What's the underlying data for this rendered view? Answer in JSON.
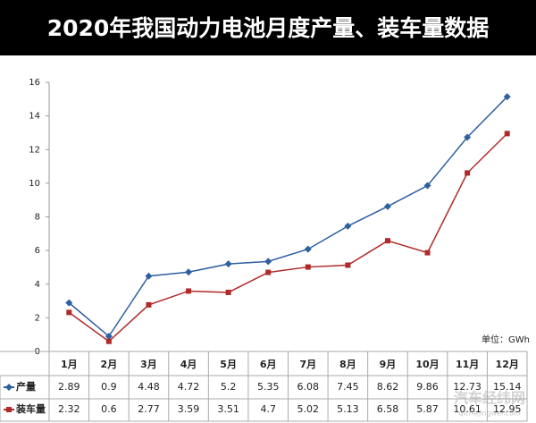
{
  "chart_data": {
    "type": "line",
    "title": "2020年我国动力电池月度产量、装车量数据",
    "categories": [
      "1月",
      "2月",
      "3月",
      "4月",
      "5月",
      "6月",
      "7月",
      "8月",
      "9月",
      "10月",
      "11月",
      "12月"
    ],
    "series": [
      {
        "name": "产量",
        "color": "#2e5f9e",
        "marker": "diamond",
        "values": [
          2.89,
          0.9,
          4.48,
          4.72,
          5.2,
          5.35,
          6.08,
          7.45,
          8.62,
          9.86,
          12.73,
          15.14
        ]
      },
      {
        "name": "装车量",
        "color": "#b02a2a",
        "marker": "square",
        "values": [
          2.32,
          0.6,
          2.77,
          3.59,
          3.51,
          4.7,
          5.02,
          5.13,
          6.58,
          5.87,
          10.61,
          12.95
        ]
      }
    ],
    "ylim": [
      0,
      16
    ],
    "yticks": [
      0,
      2,
      4,
      6,
      8,
      10,
      12,
      14,
      16
    ],
    "unit_note": "单位：GWh",
    "watermark": "汽车经纬网",
    "watermark_url": "qichejingwei.com"
  }
}
